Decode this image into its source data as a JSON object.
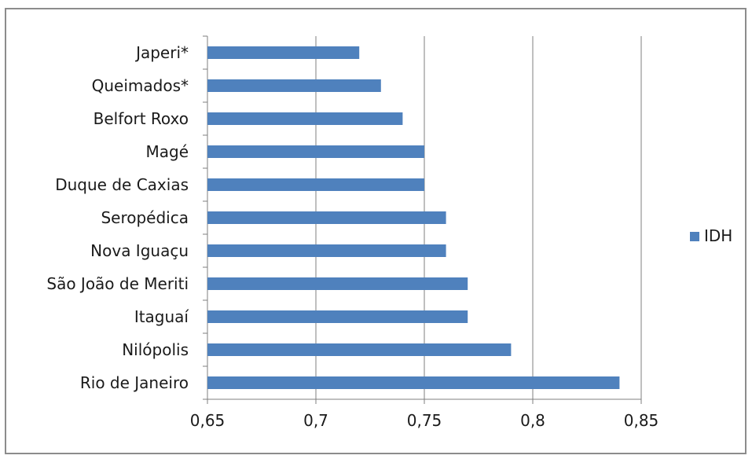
{
  "chart_data": {
    "type": "bar",
    "orientation": "horizontal",
    "categories": [
      "Japeri*",
      "Queimados*",
      "Belfort Roxo",
      "Magé",
      "Duque de Caxias",
      "Seropédica",
      "Nova Iguaçu",
      "São João de Meriti",
      "Itaguaí",
      "Nilópolis",
      "Rio de Janeiro"
    ],
    "series": [
      {
        "name": "IDH",
        "values": [
          0.72,
          0.73,
          0.74,
          0.75,
          0.75,
          0.76,
          0.76,
          0.77,
          0.77,
          0.79,
          0.84
        ],
        "color": "#4f81bd"
      }
    ],
    "xlim": [
      0.65,
      0.85
    ],
    "xticks": [
      0.65,
      0.7,
      0.75,
      0.8,
      0.85
    ],
    "xtick_labels": [
      "0,65",
      "0,7",
      "0,75",
      "0,8",
      "0,85"
    ],
    "grid": "vertical",
    "legend": "right"
  }
}
